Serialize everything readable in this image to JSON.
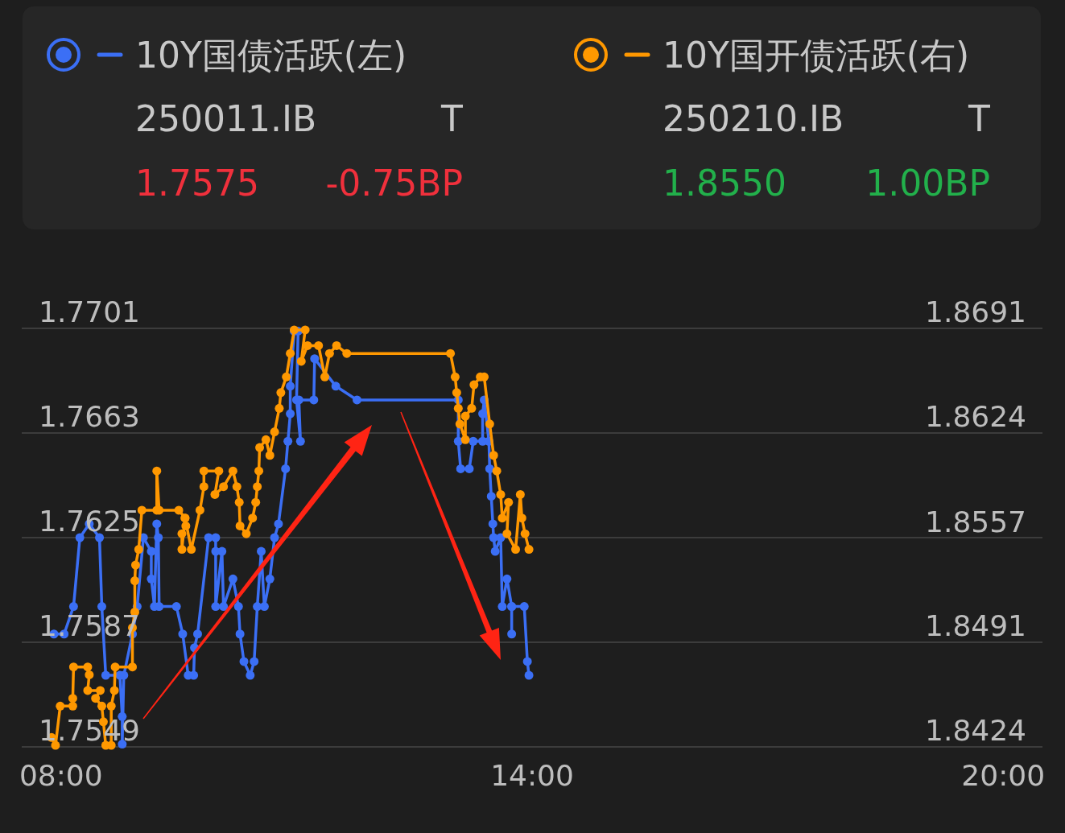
{
  "chart_data": {
    "type": "line",
    "annotations": [
      "250011.IB",
      "T",
      "1.7575",
      "-0.75BP",
      "250210.IB",
      "T",
      "1.8550",
      "1.00BP"
    ],
    "xlim": [
      7.5,
      20.5
    ],
    "xticks": [
      {
        "value": 8,
        "label": "08:00"
      },
      {
        "value": 14,
        "label": "14:00"
      },
      {
        "value": 20,
        "label": "20:00"
      }
    ],
    "ylim": [
      1.7549,
      1.7701
    ],
    "yticks": [
      1.7549,
      1.7587,
      1.7625,
      1.7663,
      1.7701
    ],
    "y2lim": [
      1.8424,
      1.8691
    ],
    "y2ticks": [
      1.8424,
      1.8491,
      1.8557,
      1.8624,
      1.8691
    ],
    "grid": "y",
    "legend": "top",
    "marker": "circle",
    "line_style": "solid",
    "series": [
      {
        "name": "10Y国债活跃(左)",
        "color": "#3b6ff5",
        "axis": "y",
        "x": [
          7.91,
          8.04,
          8.16,
          8.24,
          8.36,
          8.49,
          8.52,
          8.57,
          8.75,
          8.78,
          8.78,
          8.8,
          8.91,
          8.97,
          9.05,
          9.15,
          9.15,
          9.19,
          9.22,
          9.24,
          9.25,
          9.47,
          9.55,
          9.62,
          9.69,
          9.7,
          9.74,
          9.88,
          9.97,
          9.97,
          9.97,
          10.05,
          10.07,
          10.19,
          10.26,
          10.28,
          10.33,
          10.41,
          10.46,
          10.5,
          10.55,
          10.59,
          10.66,
          10.72,
          10.77,
          10.86,
          10.89,
          10.92,
          10.92,
          10.97,
          11.02,
          11.0,
          11.05,
          11.03,
          11.22,
          11.23,
          11.5,
          11.77,
          13.06,
          13.06,
          13.09,
          13.2,
          13.25,
          13.37,
          13.37,
          13.39,
          13.45,
          13.46,
          13.48,
          13.5,
          13.51,
          13.53,
          13.6,
          13.62,
          13.68,
          13.74,
          13.74,
          13.74,
          13.9,
          13.94,
          13.96
        ],
        "values": [
          1.759,
          1.759,
          1.76,
          1.7625,
          1.763,
          1.7625,
          1.76,
          1.7575,
          1.7575,
          1.756,
          1.755,
          1.7575,
          1.759,
          1.76,
          1.7625,
          1.762,
          1.761,
          1.76,
          1.763,
          1.7625,
          1.76,
          1.76,
          1.759,
          1.7575,
          1.7575,
          1.7585,
          1.759,
          1.7625,
          1.7625,
          1.762,
          1.76,
          1.762,
          1.76,
          1.761,
          1.76,
          1.759,
          1.758,
          1.7575,
          1.758,
          1.76,
          1.762,
          1.76,
          1.761,
          1.7625,
          1.763,
          1.765,
          1.766,
          1.767,
          1.768,
          1.77,
          1.77,
          1.7675,
          1.766,
          1.7675,
          1.7675,
          1.769,
          1.768,
          1.7675,
          1.7675,
          1.766,
          1.765,
          1.765,
          1.766,
          1.766,
          1.767,
          1.7675,
          1.766,
          1.765,
          1.764,
          1.763,
          1.7625,
          1.762,
          1.7625,
          1.76,
          1.761,
          1.76,
          1.759,
          1.76,
          1.76,
          1.758,
          1.7575
        ]
      },
      {
        "name": "10Y国开债活跃(右)",
        "color": "#ff9800",
        "axis": "y2",
        "x": [
          7.88,
          7.93,
          7.99,
          8.15,
          8.15,
          8.16,
          8.34,
          8.36,
          8.34,
          8.5,
          8.44,
          8.52,
          8.54,
          8.57,
          8.64,
          8.64,
          8.68,
          8.69,
          8.91,
          8.91,
          8.94,
          8.94,
          8.95,
          8.99,
          9.03,
          9.22,
          9.22,
          9.25,
          9.5,
          9.58,
          9.59,
          9.54,
          9.54,
          9.58,
          9.66,
          9.77,
          9.82,
          9.82,
          10.01,
          9.96,
          10.07,
          10.19,
          10.24,
          10.27,
          10.28,
          10.36,
          10.44,
          10.48,
          10.5,
          10.52,
          10.53,
          10.61,
          10.66,
          10.72,
          10.78,
          10.8,
          10.87,
          10.92,
          10.97,
          11.11,
          11.06,
          11.14,
          11.28,
          11.36,
          11.42,
          11.51,
          11.64,
          12.96,
          13.02,
          13.04,
          13.06,
          13.08,
          13.15,
          13.15,
          13.23,
          13.26,
          13.34,
          13.39,
          13.46,
          13.51,
          13.55,
          13.6,
          13.62,
          13.7,
          13.68,
          13.79,
          13.85,
          13.87,
          13.91,
          13.96
        ],
        "values": [
          1.843,
          1.8425,
          1.845,
          1.845,
          1.8455,
          1.8475,
          1.8475,
          1.847,
          1.846,
          1.846,
          1.8455,
          1.845,
          1.844,
          1.8425,
          1.8425,
          1.845,
          1.846,
          1.8475,
          1.8475,
          1.85,
          1.851,
          1.853,
          1.854,
          1.855,
          1.8575,
          1.8575,
          1.86,
          1.8575,
          1.8575,
          1.857,
          1.8565,
          1.856,
          1.855,
          1.857,
          1.855,
          1.8575,
          1.859,
          1.86,
          1.86,
          1.8585,
          1.859,
          1.86,
          1.859,
          1.858,
          1.8565,
          1.856,
          1.857,
          1.858,
          1.859,
          1.86,
          1.8615,
          1.862,
          1.861,
          1.8625,
          1.864,
          1.865,
          1.866,
          1.8675,
          1.869,
          1.869,
          1.867,
          1.868,
          1.868,
          1.866,
          1.8675,
          1.868,
          1.8675,
          1.8675,
          1.866,
          1.865,
          1.864,
          1.863,
          1.862,
          1.8635,
          1.864,
          1.8655,
          1.866,
          1.866,
          1.863,
          1.861,
          1.86,
          1.8585,
          1.857,
          1.858,
          1.856,
          1.855,
          1.8585,
          1.857,
          1.856,
          1.855
        ]
      }
    ]
  }
}
